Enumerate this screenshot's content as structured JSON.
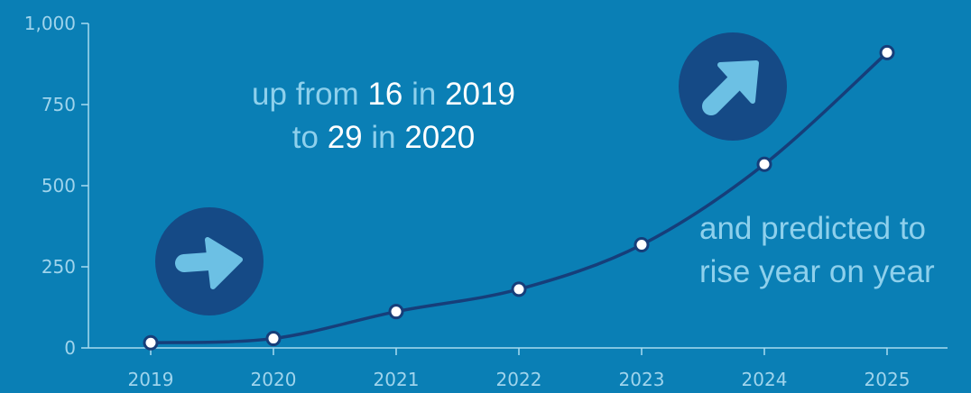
{
  "colors": {
    "background": "#0a7fb5",
    "axis": "#a8dbf0",
    "line": "#163e7a",
    "marker_fill": "#ffffff",
    "badge": "#154a86",
    "arrow": "#6cc0e4",
    "annotation_text": "#8ed0ec",
    "annotation_highlight": "#ffffff"
  },
  "annotations": {
    "top": {
      "line1": {
        "w1": "up from ",
        "v1": "16",
        "w2": " in ",
        "v2": "2019"
      },
      "line2": {
        "w1": "to ",
        "v1": "29",
        "w2": " in ",
        "v2": "2020"
      }
    },
    "right": {
      "line1": "and predicted to",
      "line2": "rise year on year"
    }
  },
  "icons": [
    "arrow-right-icon",
    "arrow-up-right-icon"
  ],
  "chart_data": {
    "type": "line",
    "categories": [
      "2019",
      "2020",
      "2021",
      "2022",
      "2023",
      "2024",
      "2025"
    ],
    "series": [
      {
        "values": [
          16,
          29,
          112,
          181,
          318,
          566,
          910
        ]
      }
    ],
    "ylim": [
      0,
      1000
    ],
    "yticks": [
      0,
      250,
      500,
      750,
      1000
    ],
    "ytick_labels": [
      "0",
      "250",
      "500",
      "750",
      "1,000"
    ],
    "grid": false,
    "legend": "none"
  }
}
